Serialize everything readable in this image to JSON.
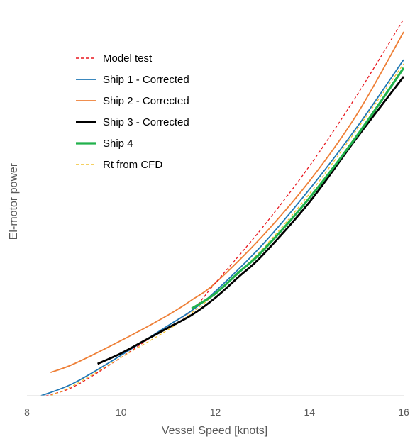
{
  "chart_data": {
    "type": "line",
    "title": "",
    "xlabel": "Vessel Speed [knots]",
    "ylabel": "El-motor power",
    "xlim": [
      8,
      16
    ],
    "ylim": [
      0,
      100
    ],
    "x_ticks": [
      "8",
      "10",
      "12",
      "14",
      "16"
    ],
    "y_ticks_shown": false,
    "grid": false,
    "legend_position": "upper-left",
    "series": [
      {
        "name": "Model test",
        "color": "#e8161e",
        "dash": "dashed",
        "width": 1.3,
        "x": [
          8.4,
          9,
          10,
          11,
          11.5,
          12,
          13,
          14,
          15,
          16
        ],
        "y": [
          0,
          2.9,
          12.0,
          22.0,
          26.7,
          35.3,
          52.7,
          72.0,
          94.0,
          118.0
        ]
      },
      {
        "name": "Ship 1 - Corrected",
        "color": "#1f77b4",
        "dash": "solid",
        "width": 1.8,
        "x": [
          8.3,
          9,
          10,
          11,
          11.5,
          12,
          13,
          14,
          15,
          16
        ],
        "y": [
          0,
          4.0,
          12.7,
          22.0,
          26.7,
          32.7,
          47.3,
          64.7,
          84.0,
          105.3
        ]
      },
      {
        "name": "Ship 2 - Corrected",
        "color": "#ee7f36",
        "dash": "solid",
        "width": 1.8,
        "x": [
          8.5,
          9,
          10,
          11,
          11.5,
          12,
          13,
          14,
          15,
          16
        ],
        "y": [
          7.3,
          10.0,
          17.3,
          25.3,
          30.0,
          35.3,
          50.0,
          67.3,
          88.0,
          114.0
        ]
      },
      {
        "name": "Ship 3 - Corrected",
        "color": "#000000",
        "dash": "solid",
        "width": 2.8,
        "x": [
          9.5,
          10,
          10.5,
          11,
          11.5,
          12,
          12.5,
          13,
          14,
          15,
          16
        ],
        "y": [
          10.0,
          13.3,
          17.3,
          21.3,
          25.3,
          30.7,
          37.3,
          44.0,
          60.7,
          80.7,
          100.0
        ]
      },
      {
        "name": "Ship 4",
        "color": "#22b14c",
        "dash": "solid",
        "width": 3.2,
        "x": [
          11.5,
          12,
          12.5,
          13,
          14,
          15,
          16
        ],
        "y": [
          27.3,
          32.0,
          38.7,
          45.3,
          62.0,
          81.3,
          102.7
        ]
      },
      {
        "name": "Rt from CFD",
        "color": "#f2c12e",
        "dash": "dashed",
        "width": 1.3,
        "x": [
          8.5,
          9,
          10,
          11,
          11.5,
          12,
          13,
          14,
          15,
          16
        ],
        "y": [
          0,
          3.3,
          12.0,
          20.7,
          26.0,
          32.0,
          46.0,
          63.3,
          83.3,
          104.0
        ]
      }
    ]
  }
}
